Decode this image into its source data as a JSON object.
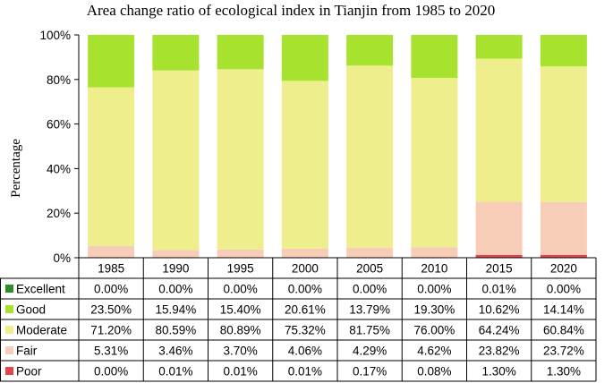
{
  "chart_data": {
    "type": "bar",
    "stacked": true,
    "percent": true,
    "title": "Area change ratio of ecological index in Tianjin from 1985 to 2020",
    "xlabel": "",
    "ylabel": "Percentage",
    "ylim": [
      0,
      100
    ],
    "y_ticks": [
      "0%",
      "20%",
      "40%",
      "60%",
      "80%",
      "100%"
    ],
    "categories": [
      "1985",
      "1990",
      "1995",
      "2000",
      "2005",
      "2010",
      "2015",
      "2020"
    ],
    "series": [
      {
        "name": "Excellent",
        "color": "#2e8b2e",
        "values": [
          0.0,
          0.0,
          0.0,
          0.0,
          0.0,
          0.0,
          0.01,
          0.0
        ],
        "labels": [
          "0.00%",
          "0.00%",
          "0.00%",
          "0.00%",
          "0.00%",
          "0.00%",
          "0.01%",
          "0.00%"
        ]
      },
      {
        "name": "Good",
        "color": "#a6e22e",
        "values": [
          23.5,
          15.94,
          15.4,
          20.61,
          13.79,
          19.3,
          10.62,
          14.14
        ],
        "labels": [
          "23.50%",
          "15.94%",
          "15.40%",
          "20.61%",
          "13.79%",
          "19.30%",
          "10.62%",
          "14.14%"
        ]
      },
      {
        "name": "Moderate",
        "color": "#eeee8c",
        "values": [
          71.2,
          80.59,
          80.89,
          75.32,
          81.75,
          76.0,
          64.24,
          60.84
        ],
        "labels": [
          "71.20%",
          "80.59%",
          "80.89%",
          "75.32%",
          "81.75%",
          "76.00%",
          "64.24%",
          "60.84%"
        ]
      },
      {
        "name": "Fair",
        "color": "#f7cdb8",
        "values": [
          5.31,
          3.46,
          3.7,
          4.06,
          4.29,
          4.62,
          23.82,
          23.72
        ],
        "labels": [
          "5.31%",
          "3.46%",
          "3.70%",
          "4.06%",
          "4.29%",
          "4.62%",
          "23.82%",
          "23.72%"
        ]
      },
      {
        "name": "Poor",
        "color": "#e0464b",
        "values": [
          0.0,
          0.01,
          0.01,
          0.01,
          0.17,
          0.08,
          1.3,
          1.3
        ],
        "labels": [
          "0.00%",
          "0.01%",
          "0.01%",
          "0.01%",
          "0.17%",
          "0.08%",
          "1.30%",
          "1.30%"
        ]
      }
    ],
    "table_row_order": [
      "Excellent",
      "Good",
      "Moderate",
      "Fair",
      "Poor"
    ],
    "stack_order_bottom_to_top": [
      "Poor",
      "Fair",
      "Moderate",
      "Good",
      "Excellent"
    ],
    "grid": false,
    "legend": "in data table"
  }
}
